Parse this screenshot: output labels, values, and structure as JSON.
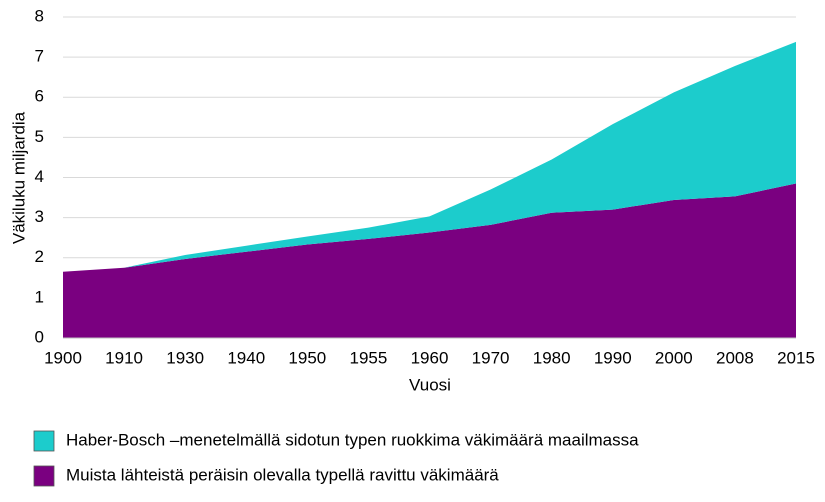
{
  "chart_data": {
    "type": "stacked_area",
    "x_label": "Vuosi",
    "y_label": "Väkiluku miljardia",
    "categories": [
      "1900",
      "1910",
      "1930",
      "1940",
      "1950",
      "1955",
      "1960",
      "1970",
      "1980",
      "1990",
      "2000",
      "2008",
      "2015"
    ],
    "series": [
      {
        "name": "Haber-Bosch –menetelmällä sidotun typen ruokkima väkimäärä maailmassa",
        "color": "#1ccccc",
        "values": [
          0,
          0,
          0.1,
          0.15,
          0.2,
          0.28,
          0.4,
          0.88,
          1.33,
          2.13,
          2.68,
          3.25,
          3.53
        ]
      },
      {
        "name": "Muista lähteistä peräisin olevalla typellä ravittu väkimäärä",
        "color": "#7a0080",
        "values": [
          1.65,
          1.75,
          1.97,
          2.15,
          2.33,
          2.47,
          2.63,
          2.82,
          3.12,
          3.2,
          3.44,
          3.53,
          3.85
        ]
      }
    ],
    "ylim": [
      0,
      8
    ],
    "yticks": [
      0,
      1,
      2,
      3,
      4,
      5,
      6,
      7,
      8
    ],
    "grid": true
  }
}
